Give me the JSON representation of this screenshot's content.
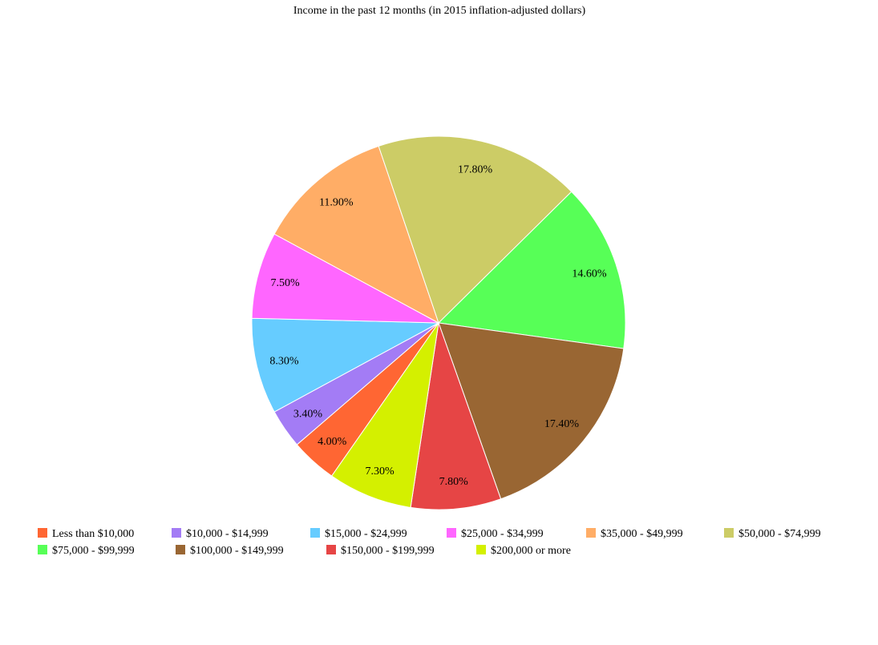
{
  "chart_data": {
    "type": "pie",
    "title": "Income in the past 12 months (in 2015 inflation-adjusted dollars)",
    "slices": [
      {
        "label": "Less than $10,000",
        "value": 4.0,
        "display": "4.00%",
        "color": "#ff6633"
      },
      {
        "label": "$10,000 - $14,999",
        "value": 3.4,
        "display": "3.40%",
        "color": "#a37cf5"
      },
      {
        "label": "$15,000 - $24,999",
        "value": 8.3,
        "display": "8.30%",
        "color": "#66ccff"
      },
      {
        "label": "$25,000 - $34,999",
        "value": 7.5,
        "display": "7.50%",
        "color": "#ff66ff"
      },
      {
        "label": "$35,000 - $49,999",
        "value": 11.9,
        "display": "11.90%",
        "color": "#ffad66"
      },
      {
        "label": "$50,000 - $74,999",
        "value": 17.8,
        "display": "17.80%",
        "color": "#cccc66"
      },
      {
        "label": "$75,000 - $99,999",
        "value": 14.6,
        "display": "14.60%",
        "color": "#57ff57"
      },
      {
        "label": "$100,000 - $149,999",
        "value": 17.4,
        "display": "17.40%",
        "color": "#996633"
      },
      {
        "label": "$150,000 - $199,999",
        "value": 7.8,
        "display": "7.80%",
        "color": "#e64545"
      },
      {
        "label": "$200,000 or more",
        "value": 7.3,
        "display": "7.30%",
        "color": "#d4f000"
      }
    ],
    "legend_position": "bottom"
  }
}
